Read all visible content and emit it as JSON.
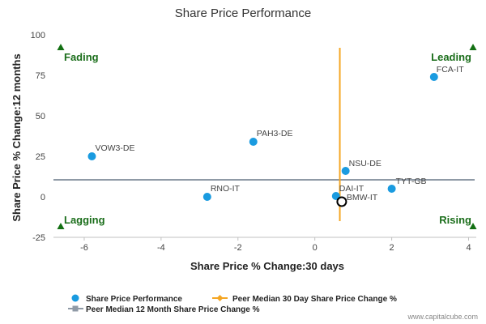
{
  "chart_data": {
    "type": "scatter",
    "title": "Share Price Performance",
    "xlabel": "Share Price % Change:30 days",
    "ylabel": "Share Price % Change:12 months",
    "xlim": [
      -6.8,
      4.2
    ],
    "ylim": [
      -25,
      100
    ],
    "x_ticks": [
      -6,
      -4,
      -2,
      0,
      2,
      4
    ],
    "y_ticks": [
      -25,
      0,
      25,
      50,
      75,
      100
    ],
    "points": [
      {
        "label": "FCA-IT",
        "x": 3.1,
        "y": 74
      },
      {
        "label": "PAH3-DE",
        "x": -1.6,
        "y": 34
      },
      {
        "label": "VOW3-DE",
        "x": -5.8,
        "y": 25
      },
      {
        "label": "NSU-DE",
        "x": 0.8,
        "y": 16
      },
      {
        "label": "TYT-GB",
        "x": 2.0,
        "y": 5
      },
      {
        "label": "RNO-IT",
        "x": -2.8,
        "y": 0
      },
      {
        "label": "DAI-IT",
        "x": 0.55,
        "y": 0.5
      },
      {
        "label": "BMW-IT",
        "x": 0.7,
        "y": -3,
        "highlight": true
      }
    ],
    "peer_median_30d": 0.65,
    "peer_median_12m": 10.5,
    "quadrants": {
      "top_left": "Fading",
      "top_right": "Leading",
      "bottom_left": "Lagging",
      "bottom_right": "Rising"
    },
    "legend": [
      {
        "name": "Share Price Performance",
        "kind": "dot",
        "color": "#1a9be0"
      },
      {
        "name": "Peer Median 30 Day Share Price Change %",
        "kind": "line-diamond",
        "color": "#f5a623"
      },
      {
        "name": "Peer Median 12 Month Share Price Change %",
        "kind": "line-square",
        "color": "#8f9aa6"
      }
    ],
    "legend_position": "bottom",
    "colors": {
      "point": "#1a9be0",
      "median_30d": "#f5a623",
      "median_12m": "#8f9aa6",
      "quadrant_text": "#1b6e1b",
      "highlight_stroke": "#000000"
    }
  },
  "credit": "www.capitalcube.com"
}
